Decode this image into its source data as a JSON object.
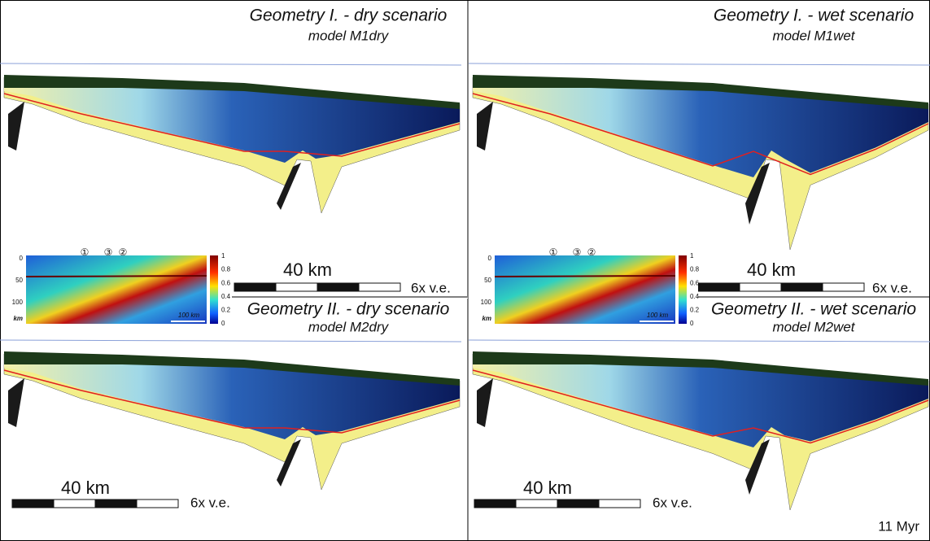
{
  "panels": [
    {
      "title": "Geometry I. - dry scenario",
      "model": "model M1dry",
      "scale": "40 km",
      "ve": "6x v.e."
    },
    {
      "title": "Geometry I. - wet scenario",
      "model": "model M1wet",
      "scale": "40 km",
      "ve": "6x v.e."
    },
    {
      "title": "Geometry II. - dry scenario",
      "model": "model M2dry",
      "scale": "40 km",
      "ve": "6x v.e."
    },
    {
      "title": "Geometry II. - wet scenario",
      "model": "model M2wet",
      "scale": "40 km",
      "ve": "6x v.e."
    }
  ],
  "insets": [
    {
      "yticks": [
        "0",
        "50",
        "100"
      ],
      "unit": "km",
      "markers": [
        "①",
        "③",
        "②"
      ],
      "scale": "100 km",
      "colorbar": [
        "1",
        "0.8",
        "0.6",
        "0.4",
        "0.2",
        "0"
      ]
    },
    {
      "yticks": [
        "0",
        "50",
        "100"
      ],
      "unit": "km",
      "markers": [
        "①",
        "③",
        "②"
      ],
      "scale": "100 km",
      "colorbar": [
        "1",
        "0.8",
        "0.6",
        "0.4",
        "0.2",
        "0"
      ]
    }
  ],
  "time": "11 Myr"
}
